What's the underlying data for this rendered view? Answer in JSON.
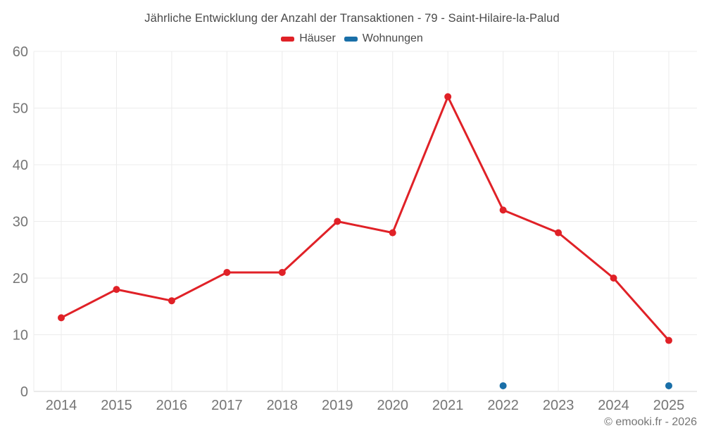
{
  "chart": {
    "title": "Jährliche Entwicklung der Anzahl der Transaktionen - 79 - Saint-Hilaire-la-Palud"
  },
  "legend": {
    "items": [
      {
        "label": "Häuser",
        "color": "#e02127"
      },
      {
        "label": "Wohnungen",
        "color": "#1a6fa8"
      }
    ]
  },
  "chart_data": {
    "type": "line",
    "title": "Jährliche Entwicklung der Anzahl der Transaktionen - 79 - Saint-Hilaire-la-Palud",
    "categories": [
      "2014",
      "2015",
      "2016",
      "2017",
      "2018",
      "2019",
      "2020",
      "2021",
      "2022",
      "2023",
      "2024",
      "2025"
    ],
    "series": [
      {
        "name": "Häuser",
        "color": "#e02127",
        "line": true,
        "markers": true,
        "values": [
          13,
          18,
          16,
          21,
          21,
          30,
          28,
          52,
          32,
          28,
          20,
          9
        ]
      },
      {
        "name": "Wohnungen",
        "color": "#1a6fa8",
        "line": false,
        "markers": true,
        "values": [
          null,
          null,
          null,
          null,
          null,
          null,
          null,
          null,
          1,
          null,
          null,
          1
        ]
      }
    ],
    "xlabel": "",
    "ylabel": "",
    "ylim": [
      0,
      60
    ],
    "yticks": [
      0,
      10,
      20,
      30,
      40,
      50,
      60
    ],
    "grid": true,
    "legend_position": "top"
  },
  "footer": {
    "copyright": "© emooki.fr - 2026"
  }
}
